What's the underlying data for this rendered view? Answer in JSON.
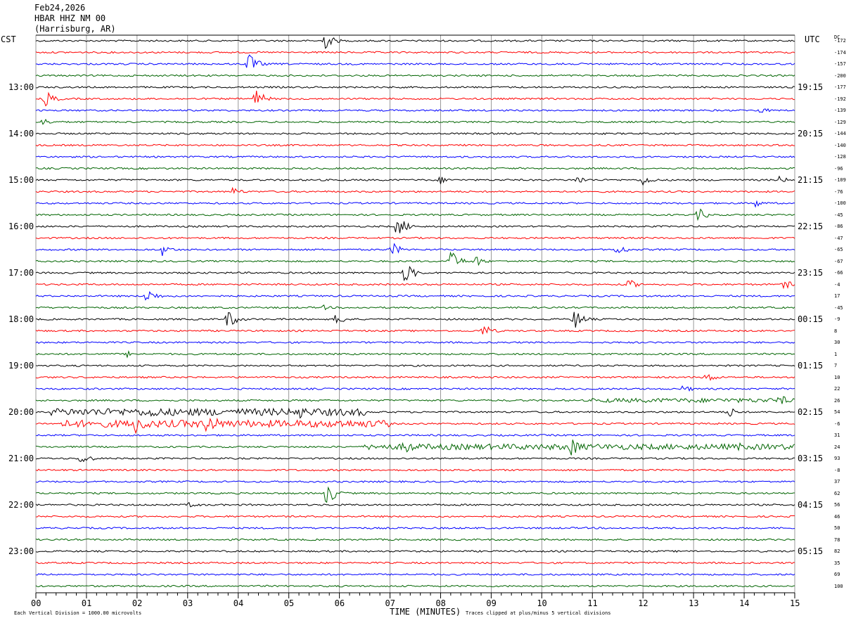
{
  "header": {
    "date": "Feb24,2026",
    "station": "HBAR HHZ NM 00",
    "location": "(Harrisburg, AR)"
  },
  "left_zone": "CST",
  "right_zone": "UTC",
  "dc_label": "DC",
  "footer": {
    "xlabel": "TIME (MINUTES)",
    "scale_note": "Each Vertical Division = 1000.00 microvolts",
    "clip_note": "Traces clipped at plus/minus 5 vertical divisions"
  },
  "colors": {
    "black": "#000000",
    "red": "#ff0000",
    "blue": "#0000ff",
    "green": "#006400",
    "grid": "#808080"
  },
  "chart_data": {
    "type": "line",
    "title": "HBAR HHZ NM 00",
    "xlabel": "TIME (MINUTES)",
    "xlim": [
      0,
      15
    ],
    "x_ticks": [
      "00",
      "01",
      "02",
      "03",
      "04",
      "05",
      "06",
      "07",
      "08",
      "09",
      "10",
      "11",
      "12",
      "13",
      "14",
      "15"
    ],
    "line_minutes": 15,
    "trace_colors": [
      "black",
      "red",
      "blue",
      "green"
    ],
    "left_hour_labels": [
      "13:00",
      "14:00",
      "15:00",
      "16:00",
      "17:00",
      "18:00",
      "19:00",
      "20:00",
      "21:00",
      "22:00",
      "23:00"
    ],
    "right_hour_labels": [
      "19:15",
      "20:15",
      "21:15",
      "22:15",
      "23:15",
      "00:15",
      "01:15",
      "02:15",
      "03:15",
      "04:15",
      "05:15"
    ],
    "dc_offsets": [
      "-172",
      "-174",
      "-157",
      "-200",
      "-177",
      "-192",
      "-139",
      "-129",
      "-144",
      "-140",
      "-128",
      "-96",
      "-109",
      "-76",
      "-100",
      "-45",
      "-86",
      "-47",
      "-65",
      "-67",
      "-66",
      "-4",
      "17",
      "-45",
      "-9",
      "8",
      "30",
      "1",
      "7",
      "10",
      "22",
      "26",
      "54",
      "-6",
      "31",
      "24",
      "93",
      "-8",
      "37",
      "62",
      "56",
      "46",
      "50",
      "78",
      "82",
      "35",
      "69",
      "100"
    ],
    "events": [
      {
        "line": 0,
        "minute": 5.7,
        "amp": 14
      },
      {
        "line": 2,
        "minute": 4.2,
        "amp": 16
      },
      {
        "line": 2,
        "minute": 10.3,
        "amp": 6
      },
      {
        "line": 5,
        "minute": 0.2,
        "amp": 12
      },
      {
        "line": 5,
        "minute": 4.35,
        "amp": 14
      },
      {
        "line": 6,
        "minute": 14.3,
        "amp": 6
      },
      {
        "line": 7,
        "minute": 0.15,
        "amp": 6
      },
      {
        "line": 12,
        "minute": 8.0,
        "amp": 6
      },
      {
        "line": 12,
        "minute": 10.7,
        "amp": 7
      },
      {
        "line": 12,
        "minute": 12.0,
        "amp": 9
      },
      {
        "line": 12,
        "minute": 14.7,
        "amp": 6
      },
      {
        "line": 13,
        "minute": 3.9,
        "amp": 7
      },
      {
        "line": 14,
        "minute": 14.2,
        "amp": 7
      },
      {
        "line": 15,
        "minute": 13.1,
        "amp": 10
      },
      {
        "line": 16,
        "minute": 7.15,
        "amp": 16
      },
      {
        "line": 18,
        "minute": 2.5,
        "amp": 9
      },
      {
        "line": 18,
        "minute": 7.05,
        "amp": 10
      },
      {
        "line": 18,
        "minute": 11.5,
        "amp": 9
      },
      {
        "line": 19,
        "minute": 8.2,
        "amp": 16
      },
      {
        "line": 19,
        "minute": 8.7,
        "amp": 8
      },
      {
        "line": 20,
        "minute": 7.3,
        "amp": 16
      },
      {
        "line": 21,
        "minute": 11.7,
        "amp": 9
      },
      {
        "line": 21,
        "minute": 14.8,
        "amp": 7
      },
      {
        "line": 22,
        "minute": 2.2,
        "amp": 12
      },
      {
        "line": 23,
        "minute": 5.7,
        "amp": 4
      },
      {
        "line": 24,
        "minute": 3.8,
        "amp": 14
      },
      {
        "line": 24,
        "minute": 5.95,
        "amp": 10
      },
      {
        "line": 24,
        "minute": 10.65,
        "amp": 15
      },
      {
        "line": 25,
        "minute": 8.85,
        "amp": 10
      },
      {
        "line": 27,
        "minute": 1.8,
        "amp": 5
      },
      {
        "line": 29,
        "minute": 13.25,
        "amp": 9
      },
      {
        "line": 30,
        "minute": 12.8,
        "amp": 6
      },
      {
        "line": 31,
        "minute": 14.7,
        "amp": 9
      },
      {
        "line": 32,
        "minute": 2.3,
        "amp": 12
      },
      {
        "line": 32,
        "minute": 5.2,
        "amp": 12
      },
      {
        "line": 32,
        "minute": 13.7,
        "amp": 8
      },
      {
        "line": 33,
        "minute": 2.0,
        "amp": 22
      },
      {
        "line": 33,
        "minute": 3.4,
        "amp": 22
      },
      {
        "line": 33,
        "minute": 5.95,
        "amp": 10
      },
      {
        "line": 35,
        "minute": 7.3,
        "amp": 14
      },
      {
        "line": 35,
        "minute": 10.6,
        "amp": 16
      },
      {
        "line": 35,
        "minute": 13.9,
        "amp": 6
      },
      {
        "line": 36,
        "minute": 0.9,
        "amp": 10
      },
      {
        "line": 39,
        "minute": 5.75,
        "amp": 18
      },
      {
        "line": 40,
        "minute": 3.05,
        "amp": 5
      }
    ],
    "noisy_spans": [
      {
        "line": 32,
        "from": 0.3,
        "to": 6.5,
        "amp": 5
      },
      {
        "line": 33,
        "from": 0.5,
        "to": 7.0,
        "amp": 5
      },
      {
        "line": 35,
        "from": 6.5,
        "to": 15.0,
        "amp": 4
      },
      {
        "line": 31,
        "from": 11.0,
        "to": 15.0,
        "amp": 3
      }
    ]
  }
}
